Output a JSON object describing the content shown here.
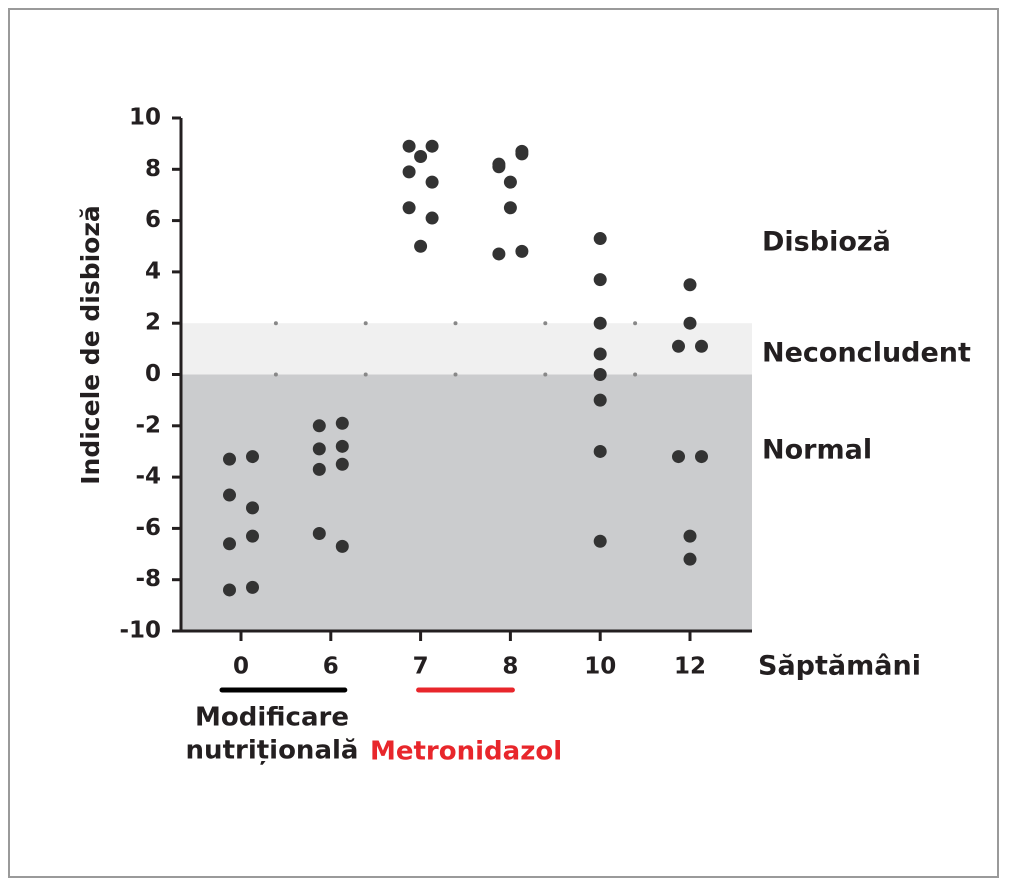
{
  "chart_data": {
    "type": "scatter",
    "x_label": "Săptămâni",
    "y_label": "Indicele de disbioză",
    "categories": [
      "0",
      "6",
      "7",
      "8",
      "10",
      "12"
    ],
    "groups": [
      [
        -3.3,
        -3.2,
        -4.7,
        -5.2,
        -6.6,
        -6.3,
        -8.4,
        -8.3
      ],
      [
        -2.0,
        -1.9,
        -2.9,
        -2.8,
        -3.7,
        -3.5,
        -6.2,
        -6.7
      ],
      [
        8.9,
        8.9,
        8.5,
        7.9,
        7.5,
        6.5,
        6.1,
        5.0
      ],
      [
        8.1,
        8.6,
        8.7,
        8.2,
        7.5,
        6.5,
        4.7,
        4.8
      ],
      [
        5.3,
        3.7,
        2.0,
        0.8,
        0.0,
        -1.0,
        -3.0,
        -6.5
      ],
      [
        3.5,
        2.0,
        1.1,
        1.1,
        -3.2,
        -3.2,
        -6.3,
        -7.2
      ]
    ],
    "color": "#333333",
    "ylim": [
      -10,
      10
    ],
    "yticks": [
      -10,
      -8,
      -6,
      -4,
      -2,
      0,
      2,
      4,
      6,
      8,
      10
    ],
    "zones": [
      {
        "label": "Disbioză",
        "range": [
          2,
          10
        ],
        "color": "#ffffff"
      },
      {
        "label": "Neconcludent",
        "range": [
          0,
          2
        ],
        "color": "#f0f0f0"
      },
      {
        "label": "Normal",
        "range": [
          -10,
          0
        ],
        "color": "#cbccce"
      }
    ],
    "annotations": [
      {
        "lines": [
          "Modificare",
          "nutrițională"
        ],
        "span": [
          "0",
          "6"
        ],
        "color": "#000000"
      },
      {
        "lines": [
          "Metronidazol"
        ],
        "span": [
          "7",
          "8"
        ],
        "color": "#e8262b"
      }
    ]
  }
}
